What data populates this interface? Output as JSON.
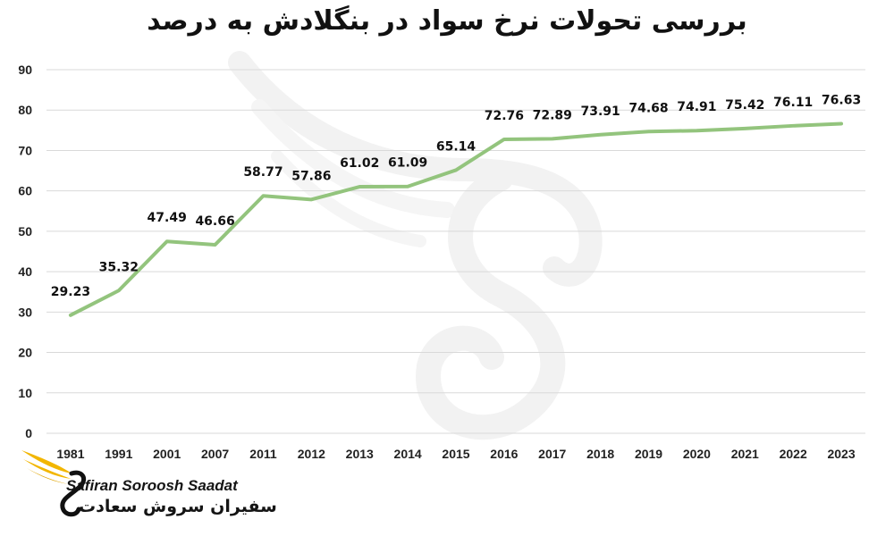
{
  "chart_data": {
    "type": "line",
    "title": "بررسی تحولات نرخ سواد در بنگلادش به درصد",
    "categories": [
      "1981",
      "1991",
      "2001",
      "2007",
      "2011",
      "2012",
      "2013",
      "2014",
      "2015",
      "2016",
      "2017",
      "2018",
      "2019",
      "2020",
      "2021",
      "2022",
      "2023"
    ],
    "series": [
      {
        "values": [
          29.23,
          35.32,
          47.49,
          46.66,
          58.77,
          57.86,
          61.02,
          61.09,
          65.14,
          72.76,
          72.89,
          73.91,
          74.68,
          74.91,
          75.42,
          76.11,
          76.63
        ]
      }
    ],
    "ylim": [
      0,
      90
    ],
    "yticks": [
      0,
      10,
      20,
      30,
      40,
      50,
      60,
      70,
      80,
      90
    ],
    "grid": true,
    "legend": "none",
    "colors": {
      "line": "#93c47d",
      "grid": "#d9d9d9",
      "text": "#111111"
    }
  },
  "logo": {
    "name_en": "Safiran Soroosh Saadat",
    "name_fa": "سفیران سروش سعادت"
  }
}
